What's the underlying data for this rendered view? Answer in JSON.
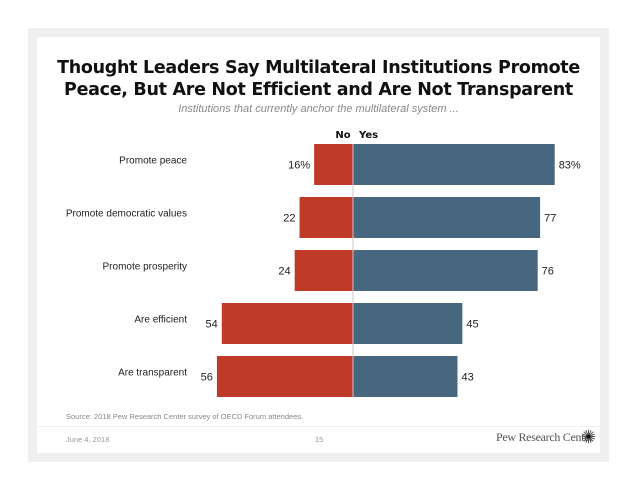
{
  "slide": {
    "footer_date": "June 4, 2018",
    "page_number": "15",
    "brand": "Pew Research Center",
    "source": "Source: 2018 Pew Research Center survey of OECD Forum attendees."
  },
  "chart_data": {
    "type": "bar",
    "orientation": "horizontal-diverging",
    "title_line1": "Thought Leaders Say Multilateral Institutions Promote",
    "title_line2": "Peace, But Are Not Efficient and Are Not Transparent",
    "subtitle": "Institutions that currently anchor the multilateral system ...",
    "categories": [
      "Promote peace",
      "Promote democratic values",
      "Promote prosperity",
      "Are efficient",
      "Are transparent"
    ],
    "series": [
      {
        "name": "No",
        "color": "#bf3a27",
        "values": [
          16,
          22,
          24,
          54,
          56
        ],
        "labels": [
          "16%",
          "22",
          "24",
          "54",
          "56"
        ]
      },
      {
        "name": "Yes",
        "color": "#46677f",
        "values": [
          83,
          77,
          76,
          45,
          43
        ],
        "labels": [
          "83%",
          "77",
          "76",
          "45",
          "43"
        ]
      }
    ],
    "legend": [
      "No",
      "Yes"
    ],
    "legend_placement": "top-center",
    "grid": false
  }
}
